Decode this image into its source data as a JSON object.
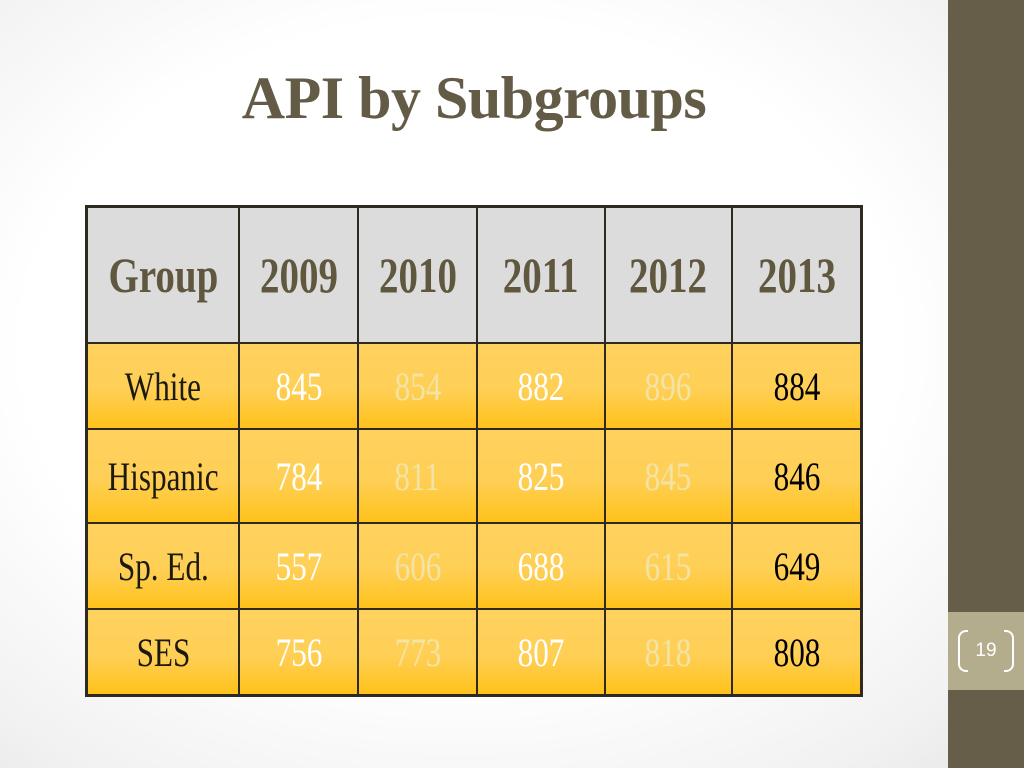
{
  "title": "API by Subgroups",
  "page_number": "19",
  "colors": {
    "title": "#635b46",
    "side_bar": "#665e48",
    "page_box": "#b3ac8d",
    "header_bg": "#dcdcdc",
    "row_bg_top": "#ffd25f",
    "row_bg_bottom": "#ffc21a"
  },
  "table": {
    "headers": [
      "Group",
      "2009",
      "2010",
      "2011",
      "2012",
      "2013"
    ],
    "rows": [
      [
        "White",
        "845",
        "854",
        "882",
        "896",
        "884"
      ],
      [
        "Hispanic",
        "784",
        "811",
        "825",
        "845",
        "846"
      ],
      [
        "Sp. Ed.",
        "557",
        "606",
        "688",
        "615",
        "649"
      ],
      [
        "SES",
        "756",
        "773",
        "807",
        "818",
        "808"
      ]
    ]
  }
}
